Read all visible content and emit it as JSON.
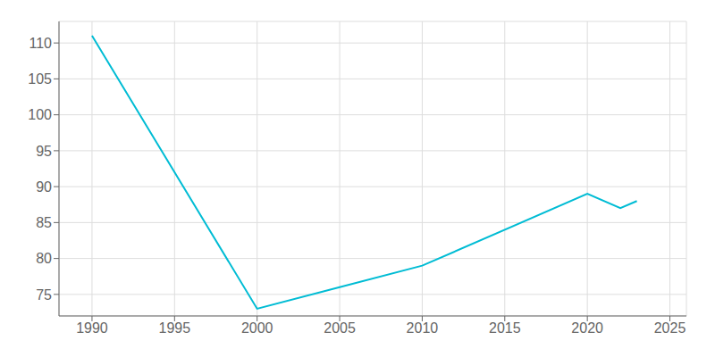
{
  "chart_data": {
    "type": "line",
    "x": [
      1990,
      2000,
      2005,
      2010,
      2020,
      2022,
      2023
    ],
    "values": [
      111,
      73,
      76,
      79,
      89,
      87,
      88
    ],
    "color": "#00bcd4",
    "xlim": [
      1988,
      2026
    ],
    "ylim": [
      72,
      113
    ],
    "xticks": [
      1990,
      1995,
      2000,
      2005,
      2010,
      2015,
      2020,
      2025
    ],
    "yticks": [
      75,
      80,
      85,
      90,
      95,
      100,
      105,
      110
    ],
    "grid": true
  }
}
